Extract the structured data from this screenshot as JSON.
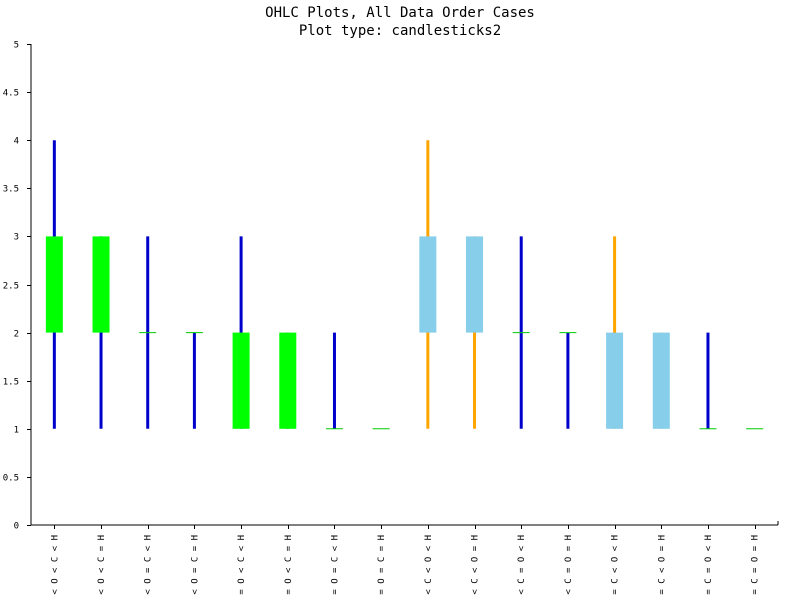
{
  "chart_data": {
    "type": "candlestick",
    "title": "OHLC Plots, All Data Order Cases",
    "subtitle": "Plot type: candlesticks2",
    "ylim": [
      0,
      5
    ],
    "yticks": [
      "0",
      "0.5",
      "1",
      "1.5",
      "2",
      "2.5",
      "3",
      "3.5",
      "4",
      "4.5",
      "5"
    ],
    "categories": [
      "L < O < C < H",
      "L < O < C = H",
      "L < O = C < H",
      "L < O = C = H",
      "L = O < C < H",
      "L = O < C = H",
      "L = O = C < H",
      "L = O = C = H",
      "L < C < O < H",
      "L < C < O = H",
      "L < C = O < H",
      "L < C = O = H",
      "L = C < O < H",
      "L = C < O = H",
      "L = C = O < H",
      "L = C = O = H"
    ],
    "open": [
      2,
      2,
      2,
      2,
      1,
      1,
      1,
      1,
      3,
      3,
      2,
      2,
      2,
      2,
      1,
      1
    ],
    "high": [
      4,
      3,
      3,
      2,
      3,
      2,
      2,
      1,
      4,
      3,
      3,
      2,
      3,
      2,
      2,
      1
    ],
    "low": [
      1,
      1,
      1,
      1,
      1,
      1,
      1,
      1,
      1,
      1,
      1,
      1,
      1,
      1,
      1,
      1
    ],
    "close": [
      3,
      3,
      2,
      2,
      2,
      2,
      1,
      1,
      2,
      2,
      2,
      2,
      1,
      1,
      1,
      1
    ],
    "colors": {
      "up_body": "#00ff00",
      "down_body": "#87ceeb",
      "up_wick": "#0000cc",
      "down_wick": "#ffa500",
      "flat_body": "#00cc00",
      "axis": "#000000"
    }
  }
}
